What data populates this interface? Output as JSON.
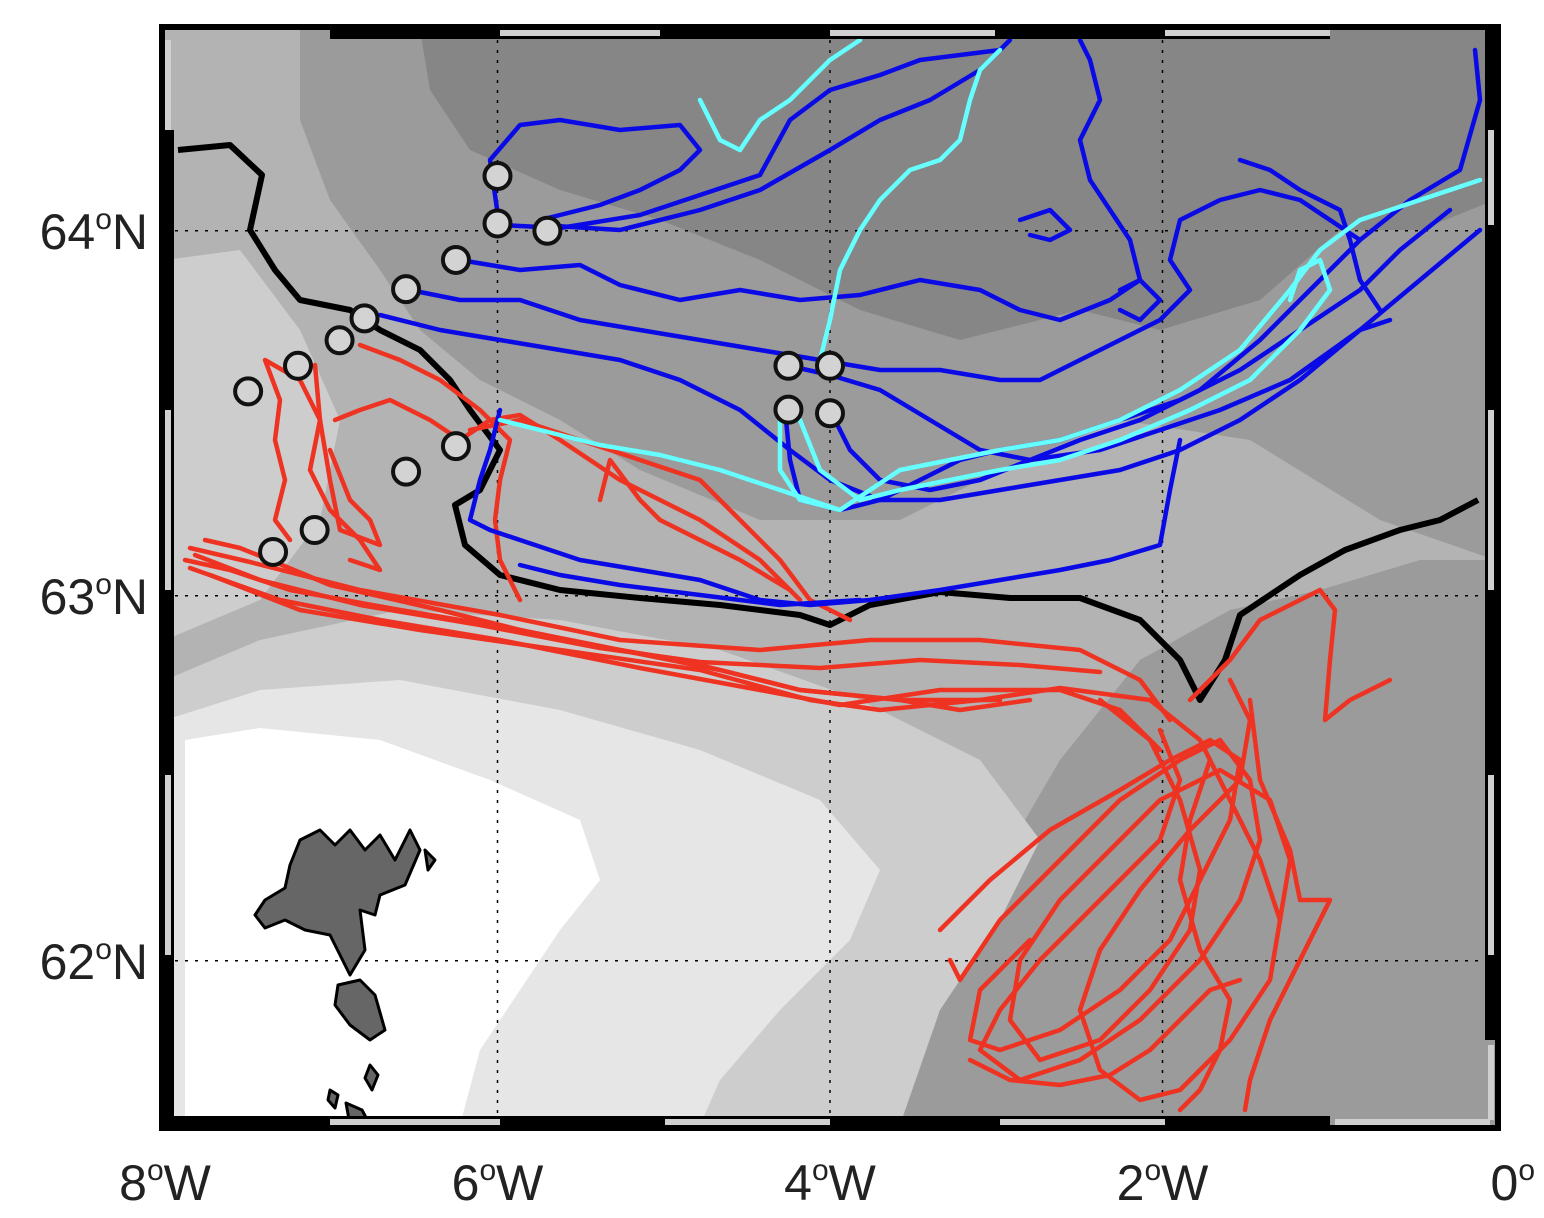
{
  "map": {
    "projection_extent": {
      "lon": [
        -8,
        0
      ],
      "lat": [
        61.55,
        64.55
      ]
    },
    "x_ticks": [
      {
        "lon": -8,
        "deg": "8",
        "sup": "o",
        "hemi": "W"
      },
      {
        "lon": -6,
        "deg": "6",
        "sup": "o",
        "hemi": "W"
      },
      {
        "lon": -4,
        "deg": "4",
        "sup": "o",
        "hemi": "W"
      },
      {
        "lon": -2,
        "deg": "2",
        "sup": "o",
        "hemi": "W"
      },
      {
        "lon": 0,
        "deg": "0",
        "sup": "o",
        "hemi": ""
      }
    ],
    "y_ticks": [
      {
        "lat": 64,
        "deg": "64",
        "sup": "o",
        "hemi": "N"
      },
      {
        "lat": 63,
        "deg": "63",
        "sup": "o",
        "hemi": "N"
      },
      {
        "lat": 62,
        "deg": "62",
        "sup": "o",
        "hemi": "N"
      }
    ],
    "colors": {
      "bathymetry_levels": [
        "#ffffff",
        "#e6e6e6",
        "#cdcdcd",
        "#b3b3b3",
        "#9b9b9b",
        "#868686"
      ],
      "land": "#666666",
      "contour_line": "#000000",
      "track_red": "#ee3322",
      "track_blue": "#0a0ae6",
      "track_cyan": "#66ffff",
      "release_marker_fill": "#d3d3d3",
      "release_marker_edge": "#111111"
    },
    "release_points": [
      {
        "lon": -6.0,
        "lat": 64.15
      },
      {
        "lon": -6.0,
        "lat": 64.02
      },
      {
        "lon": -5.7,
        "lat": 64.0
      },
      {
        "lon": -6.25,
        "lat": 63.92
      },
      {
        "lon": -6.55,
        "lat": 63.84
      },
      {
        "lon": -6.8,
        "lat": 63.76
      },
      {
        "lon": -6.95,
        "lat": 63.7
      },
      {
        "lon": -7.2,
        "lat": 63.63
      },
      {
        "lon": -7.5,
        "lat": 63.56
      },
      {
        "lon": -6.25,
        "lat": 63.41
      },
      {
        "lon": -6.55,
        "lat": 63.34
      },
      {
        "lon": -7.1,
        "lat": 63.18
      },
      {
        "lon": -7.35,
        "lat": 63.12
      },
      {
        "lon": -4.25,
        "lat": 63.63
      },
      {
        "lon": -4.0,
        "lat": 63.63
      },
      {
        "lon": -4.25,
        "lat": 63.51
      },
      {
        "lon": -4.0,
        "lat": 63.5
      }
    ]
  }
}
